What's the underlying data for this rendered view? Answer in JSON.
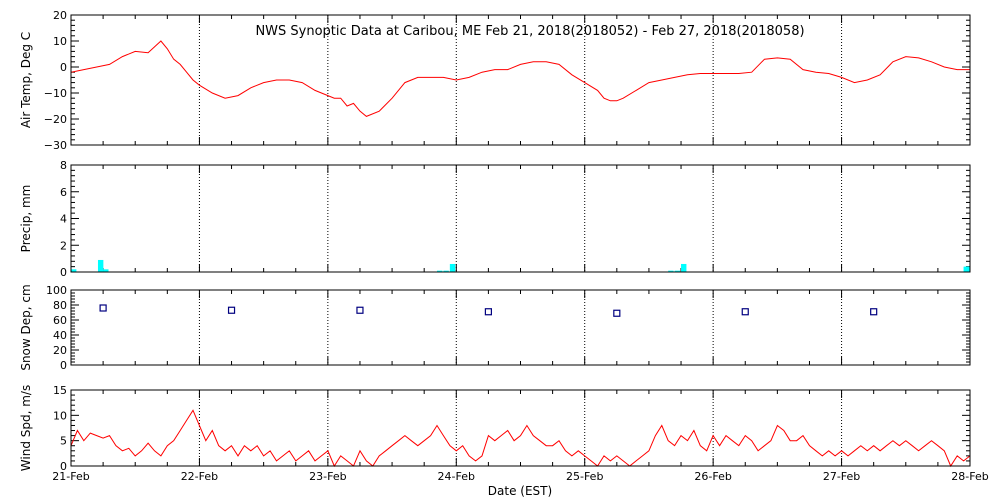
{
  "chart_data": {
    "type": "line",
    "title": "NWS Synoptic Data at Caribou, ME   Feb 21, 2018(2018052) - Feb 27, 2018(2018058)",
    "xlabel": "Date (EST)",
    "x_tick_labels": [
      "21-Feb",
      "22-Feb",
      "23-Feb",
      "24-Feb",
      "25-Feb",
      "26-Feb",
      "27-Feb",
      "28-Feb"
    ],
    "xlim": [
      0,
      7
    ],
    "x_units": "days since 21-Feb 00:00 EST",
    "grid": "vertical dotted at day boundaries",
    "panels": [
      {
        "id": "air_temp",
        "type": "line",
        "ylabel": "Air Temp, Deg C",
        "ylim": [
          -30,
          20
        ],
        "yticks": [
          -30,
          -20,
          -10,
          0,
          10,
          20
        ],
        "ytick_labels": [
          "−30",
          "−20",
          "−10",
          "0",
          "10",
          "20"
        ],
        "color": "#ff0000",
        "series": [
          {
            "x": [
              0.0,
              0.1,
              0.2,
              0.3,
              0.4,
              0.5,
              0.6,
              0.7,
              0.75,
              0.8,
              0.85,
              0.9,
              0.95,
              1.0,
              1.1,
              1.2,
              1.3,
              1.4,
              1.5,
              1.6,
              1.7,
              1.8,
              1.9,
              2.0,
              2.05,
              2.1,
              2.15,
              2.2,
              2.25,
              2.3,
              2.4,
              2.5,
              2.6,
              2.7,
              2.8,
              2.9,
              3.0,
              3.1,
              3.2,
              3.3,
              3.4,
              3.5,
              3.6,
              3.7,
              3.8,
              3.9,
              4.0,
              4.1,
              4.15,
              4.2,
              4.25,
              4.3,
              4.4,
              4.5,
              4.6,
              4.7,
              4.8,
              4.9,
              5.0,
              5.1,
              5.2,
              5.3,
              5.4,
              5.5,
              5.6,
              5.7,
              5.8,
              5.9,
              6.0,
              6.1,
              6.2,
              6.3,
              6.4,
              6.5,
              6.6,
              6.7,
              6.8,
              6.9,
              7.0
            ],
            "y": [
              -2,
              -1,
              0,
              1,
              4,
              6,
              5.5,
              10,
              7,
              3,
              1,
              -2,
              -5,
              -7,
              -10,
              -12,
              -11,
              -8,
              -6,
              -5,
              -5,
              -6,
              -9,
              -11,
              -12,
              -12,
              -15,
              -14,
              -17,
              -19,
              -17,
              -12,
              -6,
              -4,
              -4,
              -4,
              -5,
              -4,
              -2,
              -1,
              -1,
              1,
              2,
              2,
              1,
              -3,
              -6,
              -9,
              -12,
              -13,
              -13,
              -12,
              -9,
              -6,
              -5,
              -4,
              -3,
              -2.5,
              -2.5,
              -2.5,
              -2.5,
              -2,
              3,
              3.5,
              3,
              -1,
              -2,
              -2.5,
              -4,
              -6,
              -5,
              -3,
              2,
              4,
              3.5,
              2,
              0,
              -1,
              -1
            ]
          }
        ]
      },
      {
        "id": "precip",
        "type": "bar",
        "ylabel": "Precip, mm",
        "ylim": [
          0,
          8
        ],
        "yticks": [
          0,
          2,
          4,
          6,
          8
        ],
        "ytick_labels": [
          "0",
          "2",
          "4",
          "6",
          "8"
        ],
        "color": "#00ffff",
        "bar_width_days": 0.042,
        "series": [
          {
            "x": [
              0.0,
              0.21,
              0.25,
              2.85,
              2.9,
              2.95,
              4.65,
              4.7,
              4.75,
              6.95,
              7.0
            ],
            "y": [
              0.2,
              0.9,
              0.2,
              0.1,
              0.1,
              0.6,
              0.1,
              0.1,
              0.6,
              0.4,
              0.4
            ]
          }
        ]
      },
      {
        "id": "snow_depth",
        "type": "scatter",
        "ylabel": "Snow Dep, cm",
        "ylim": [
          0,
          100
        ],
        "yticks": [
          0,
          20,
          40,
          60,
          80,
          100
        ],
        "ytick_labels": [
          "0",
          "20",
          "40",
          "60",
          "80",
          "100"
        ],
        "color": "#000080",
        "marker": "square",
        "series": [
          {
            "x": [
              0.25,
              1.25,
              2.25,
              3.25,
              4.25,
              5.25,
              6.25
            ],
            "y": [
              76,
              73,
              73,
              71,
              69,
              71,
              71
            ]
          }
        ]
      },
      {
        "id": "wind_speed",
        "type": "line",
        "ylabel": "Wind Spd, m/s",
        "ylim": [
          0,
          15
        ],
        "yticks": [
          0,
          5,
          10,
          15
        ],
        "ytick_labels": [
          "0",
          "5",
          "10",
          "15"
        ],
        "color": "#ff0000",
        "series": [
          {
            "x": [
              0.0,
              0.05,
              0.1,
              0.15,
              0.2,
              0.25,
              0.3,
              0.35,
              0.4,
              0.45,
              0.5,
              0.55,
              0.6,
              0.65,
              0.7,
              0.75,
              0.8,
              0.85,
              0.9,
              0.95,
              1.0,
              1.05,
              1.1,
              1.15,
              1.2,
              1.25,
              1.3,
              1.35,
              1.4,
              1.45,
              1.5,
              1.55,
              1.6,
              1.65,
              1.7,
              1.75,
              1.8,
              1.85,
              1.9,
              1.95,
              2.0,
              2.05,
              2.1,
              2.15,
              2.2,
              2.25,
              2.3,
              2.35,
              2.4,
              2.45,
              2.5,
              2.55,
              2.6,
              2.65,
              2.7,
              2.75,
              2.8,
              2.85,
              2.9,
              2.95,
              3.0,
              3.05,
              3.1,
              3.15,
              3.2,
              3.25,
              3.3,
              3.35,
              3.4,
              3.45,
              3.5,
              3.55,
              3.6,
              3.65,
              3.7,
              3.75,
              3.8,
              3.85,
              3.9,
              3.95,
              4.0,
              4.05,
              4.1,
              4.15,
              4.2,
              4.25,
              4.3,
              4.35,
              4.4,
              4.45,
              4.5,
              4.55,
              4.6,
              4.65,
              4.7,
              4.75,
              4.8,
              4.85,
              4.9,
              4.95,
              5.0,
              5.05,
              5.1,
              5.15,
              5.2,
              5.25,
              5.3,
              5.35,
              5.4,
              5.45,
              5.5,
              5.55,
              5.6,
              5.65,
              5.7,
              5.75,
              5.8,
              5.85,
              5.9,
              5.95,
              6.0,
              6.05,
              6.1,
              6.15,
              6.2,
              6.25,
              6.3,
              6.35,
              6.4,
              6.45,
              6.5,
              6.55,
              6.6,
              6.65,
              6.7,
              6.75,
              6.8,
              6.85,
              6.9,
              6.95,
              7.0
            ],
            "y": [
              4,
              7,
              5,
              6.5,
              6,
              5.5,
              6,
              4,
              3,
              3.5,
              2,
              3,
              4.5,
              3,
              2,
              4,
              5,
              7,
              9,
              11,
              8,
              5,
              7,
              4,
              3,
              4,
              2,
              4,
              3,
              4,
              2,
              3,
              1,
              2,
              3,
              1,
              2,
              3,
              1,
              2,
              3,
              0,
              2,
              1,
              0,
              3,
              1,
              0,
              2,
              3,
              4,
              5,
              6,
              5,
              4,
              5,
              6,
              8,
              6,
              4,
              3,
              4,
              2,
              1,
              2,
              6,
              5,
              6,
              7,
              5,
              6,
              8,
              6,
              5,
              4,
              4,
              5,
              3,
              2,
              3,
              2,
              1,
              0,
              2,
              1,
              2,
              1,
              0,
              1,
              2,
              3,
              6,
              8,
              5,
              4,
              6,
              5,
              7,
              4,
              3,
              6,
              4,
              6,
              5,
              4,
              6,
              5,
              3,
              4,
              5,
              8,
              7,
              5,
              5,
              6,
              4,
              3,
              2,
              3,
              2,
              3,
              2,
              3,
              4,
              3,
              4,
              3,
              4,
              5,
              4,
              5,
              4,
              3,
              4,
              5,
              4,
              3,
              0,
              2,
              1,
              2
            ]
          }
        ]
      }
    ]
  }
}
